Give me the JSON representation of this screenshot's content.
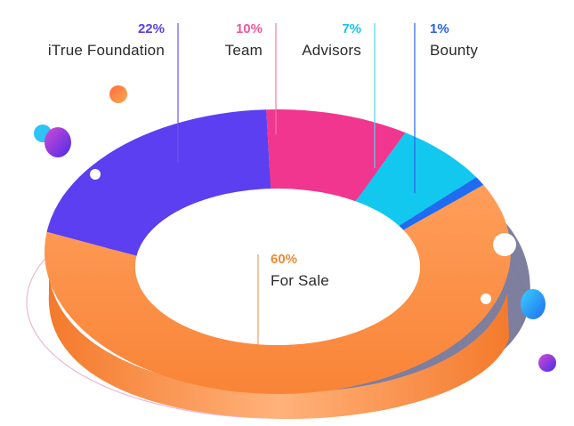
{
  "chart_data": {
    "type": "pie",
    "variant": "3d-donut",
    "title": "",
    "slices": [
      {
        "label": "iTrue Foundation",
        "value": 22,
        "value_label": "22%",
        "color": "#5b3ff0",
        "label_color": "#5a40e6"
      },
      {
        "label": "Team",
        "value": 10,
        "value_label": "10%",
        "color": "#f0368e",
        "label_color": "#f0579e"
      },
      {
        "label": "Advisors",
        "value": 7,
        "value_label": "7%",
        "color": "#12c8ef",
        "label_color": "#18c3ec"
      },
      {
        "label": "Bounty",
        "value": 1,
        "value_label": "1%",
        "color": "#1f6cf0",
        "label_color": "#2a62e8"
      },
      {
        "label": "For Sale",
        "value": 60,
        "value_label": "60%",
        "color": "#fb8a3a",
        "label_color": "#f08a35"
      }
    ],
    "legend": "none"
  }
}
